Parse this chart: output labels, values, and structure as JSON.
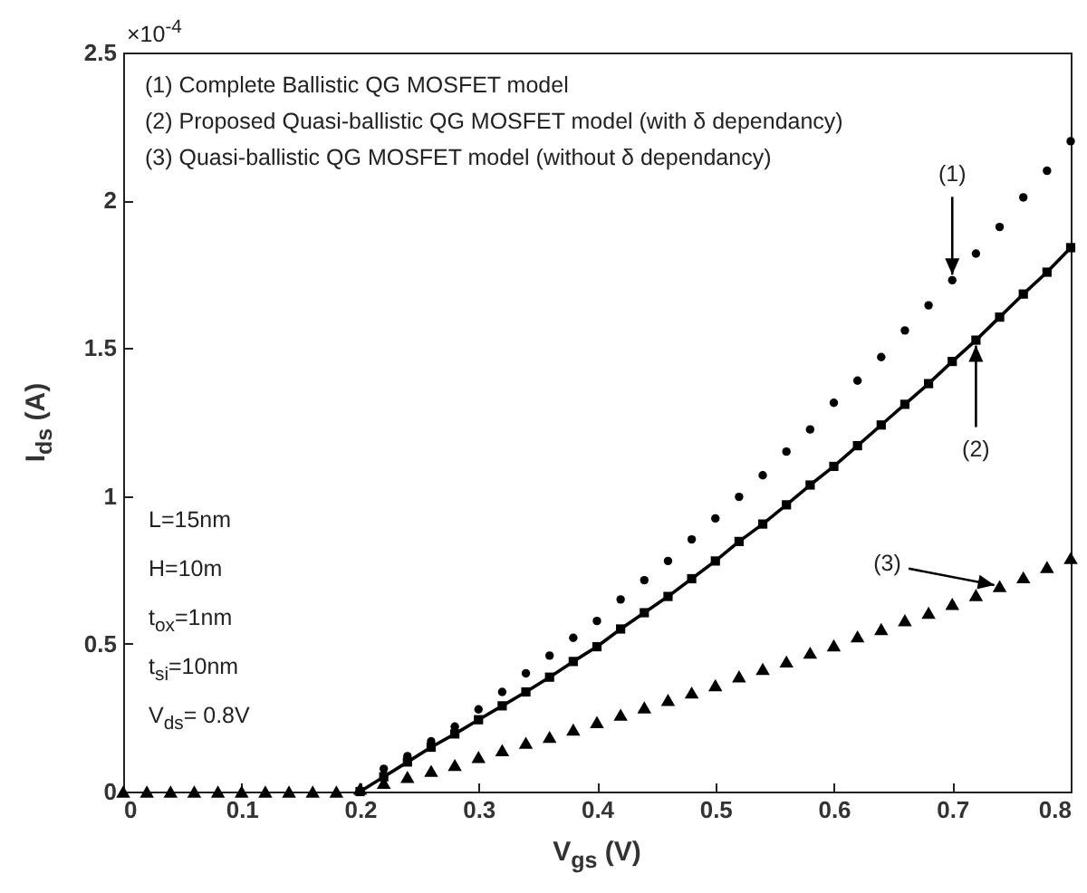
{
  "chart_data": {
    "type": "scatter",
    "xlabel": "V$_{gs}$ (V)",
    "ylabel": "I$_{ds}$ (A)",
    "x": [
      0,
      0.02,
      0.04,
      0.06,
      0.08,
      0.1,
      0.12,
      0.14,
      0.16,
      0.18,
      0.2,
      0.22,
      0.24,
      0.26,
      0.28,
      0.3,
      0.32,
      0.34,
      0.36,
      0.38,
      0.4,
      0.42,
      0.44,
      0.46,
      0.48,
      0.5,
      0.52,
      0.54,
      0.56,
      0.58,
      0.6,
      0.62,
      0.64,
      0.66,
      0.68,
      0.7,
      0.72,
      0.74,
      0.76,
      0.78,
      0.8
    ],
    "series": [
      {
        "type": "scatter",
        "marker": "circle",
        "color": "#000000",
        "values": [
          null,
          null,
          null,
          null,
          null,
          null,
          null,
          null,
          null,
          null,
          null,
          0.077,
          0.12,
          0.17,
          0.22,
          0.278,
          0.337,
          0.4,
          0.46,
          0.52,
          0.577,
          0.65,
          0.715,
          0.78,
          0.853,
          0.924,
          0.997,
          1.07,
          1.15,
          1.225,
          1.315,
          1.39,
          1.47,
          1.56,
          1.645,
          1.73,
          1.82,
          1.91,
          2.01,
          2.1,
          2.2
        ]
      },
      {
        "type": "line",
        "marker": "square",
        "color": "#000000",
        "values": [
          null,
          null,
          null,
          null,
          null,
          null,
          null,
          null,
          null,
          null,
          0.0,
          0.05,
          0.1,
          0.15,
          0.195,
          0.243,
          0.29,
          0.337,
          0.387,
          0.44,
          0.49,
          0.55,
          0.605,
          0.66,
          0.72,
          0.78,
          0.846,
          0.905,
          0.97,
          1.037,
          1.1,
          1.17,
          1.24,
          1.31,
          1.38,
          1.455,
          1.527,
          1.605,
          1.683,
          1.757,
          1.84
        ]
      },
      {
        "type": "scatter",
        "marker": "triangle",
        "color": "#000000",
        "values": [
          0,
          0,
          0,
          0,
          0,
          0,
          0,
          0,
          0,
          0,
          0.01,
          0.03,
          0.05,
          0.07,
          0.09,
          0.117,
          0.14,
          0.165,
          0.185,
          0.21,
          0.235,
          0.26,
          0.285,
          0.31,
          0.335,
          0.36,
          0.39,
          0.415,
          0.44,
          0.47,
          0.495,
          0.525,
          0.55,
          0.58,
          0.605,
          0.635,
          0.665,
          0.695,
          0.725,
          0.76,
          0.79
        ]
      }
    ],
    "xlim": [
      0,
      0.8
    ],
    "xticks": [
      0,
      0.1,
      0.2,
      0.3,
      0.4,
      0.5,
      0.6,
      0.7,
      0.8
    ],
    "ylim": [
      0,
      2.5
    ],
    "yticks": [
      0,
      0.5,
      1,
      1.5,
      2,
      2.5
    ],
    "annotations": [
      "×10$^{-4}$",
      "(1) Complete Ballistic QG MOSFET model",
      "(2) Proposed Quasi-ballistic QG MOSFET model (with δ dependancy)",
      "(3) Quasi-ballistic QG MOSFET model (without δ dependancy)",
      "L=15nm",
      "H=10m",
      "t$_{ox}$=1nm",
      "t$_{si}$=10nm",
      "V$_{ds}$= 0.8V",
      {
        "text": "(1)",
        "x": 0.7,
        "y": 1.73
      },
      {
        "text": "(2)",
        "x": 0.72,
        "y": 1.527
      },
      {
        "text": "(3)",
        "x": 0.74,
        "y": 0.695
      }
    ]
  }
}
